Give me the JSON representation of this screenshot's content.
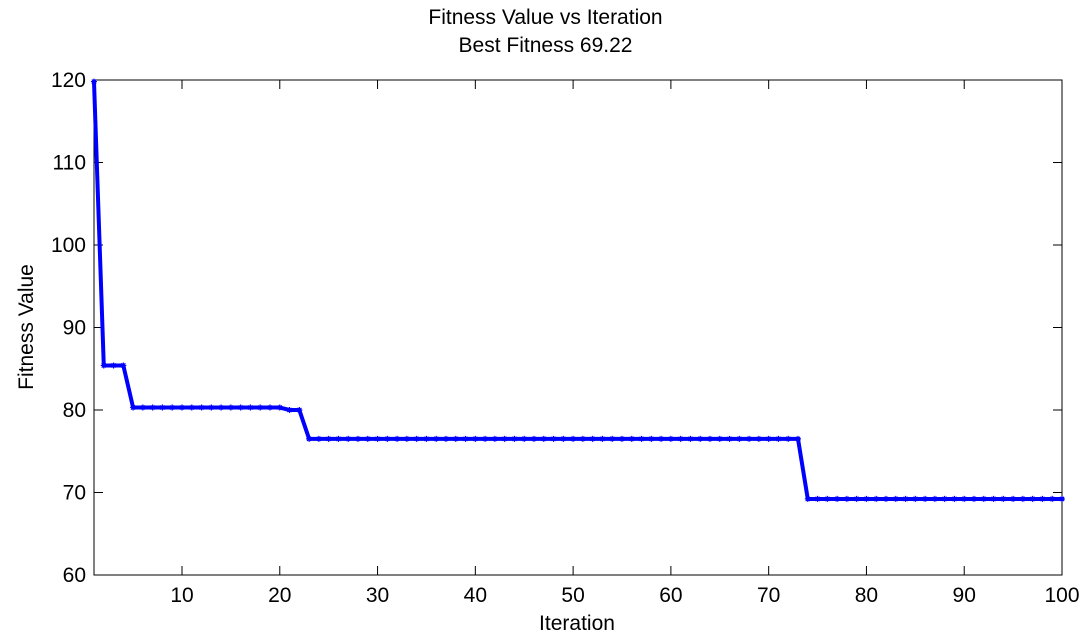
{
  "chart_data": {
    "type": "line",
    "title": "Fitness Value vs Iteration",
    "subtitle": "Best Fitness 69.22",
    "xlabel": "Iteration",
    "ylabel": "Fitness Value",
    "xlim": [
      1,
      100
    ],
    "ylim": [
      60,
      120
    ],
    "xticks": [
      10,
      20,
      30,
      40,
      50,
      60,
      70,
      80,
      90,
      100
    ],
    "yticks": [
      60,
      70,
      80,
      90,
      100,
      110,
      120
    ],
    "grid": false,
    "line_color": "#0000ff",
    "marker": "star",
    "series": [
      {
        "x": [
          1,
          2,
          3,
          4,
          5,
          6,
          7,
          8,
          9,
          10,
          11,
          12,
          13,
          14,
          15,
          16,
          17,
          18,
          19,
          20,
          21,
          22,
          23,
          24,
          25,
          26,
          27,
          28,
          29,
          30,
          31,
          32,
          33,
          34,
          35,
          36,
          37,
          38,
          39,
          40,
          41,
          42,
          43,
          44,
          45,
          46,
          47,
          48,
          49,
          50,
          51,
          52,
          53,
          54,
          55,
          56,
          57,
          58,
          59,
          60,
          61,
          62,
          63,
          64,
          65,
          66,
          67,
          68,
          69,
          70,
          71,
          72,
          73,
          74,
          75,
          76,
          77,
          78,
          79,
          80,
          81,
          82,
          83,
          84,
          85,
          86,
          87,
          88,
          89,
          90,
          91,
          92,
          93,
          94,
          95,
          96,
          97,
          98,
          99,
          100
        ],
        "values": [
          119.8,
          85.4,
          85.4,
          85.4,
          80.3,
          80.3,
          80.3,
          80.3,
          80.3,
          80.3,
          80.3,
          80.3,
          80.3,
          80.3,
          80.3,
          80.3,
          80.3,
          80.3,
          80.3,
          80.3,
          80.0,
          80.0,
          76.5,
          76.5,
          76.5,
          76.5,
          76.5,
          76.5,
          76.5,
          76.5,
          76.5,
          76.5,
          76.5,
          76.5,
          76.5,
          76.5,
          76.5,
          76.5,
          76.5,
          76.5,
          76.5,
          76.5,
          76.5,
          76.5,
          76.5,
          76.5,
          76.5,
          76.5,
          76.5,
          76.5,
          76.5,
          76.5,
          76.5,
          76.5,
          76.5,
          76.5,
          76.5,
          76.5,
          76.5,
          76.5,
          76.5,
          76.5,
          76.5,
          76.5,
          76.5,
          76.5,
          76.5,
          76.5,
          76.5,
          76.5,
          76.5,
          76.5,
          76.5,
          69.22,
          69.22,
          69.22,
          69.22,
          69.22,
          69.22,
          69.22,
          69.22,
          69.22,
          69.22,
          69.22,
          69.22,
          69.22,
          69.22,
          69.22,
          69.22,
          69.22,
          69.22,
          69.22,
          69.22,
          69.22,
          69.22,
          69.22,
          69.22,
          69.22,
          69.22,
          69.22
        ]
      }
    ]
  }
}
